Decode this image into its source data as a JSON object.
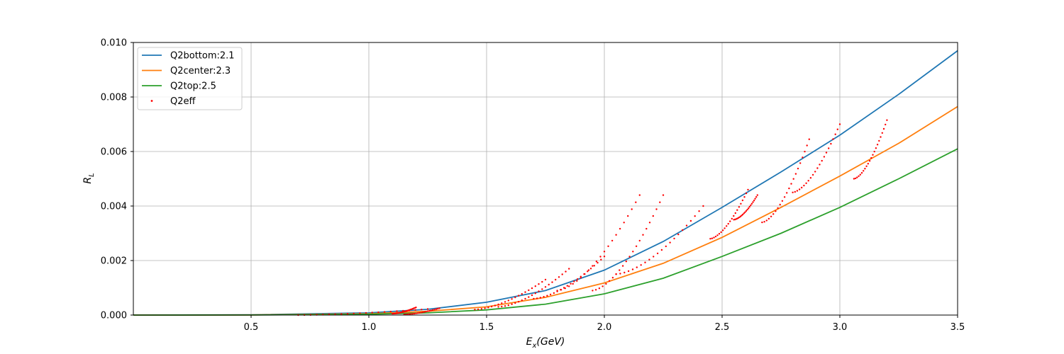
{
  "chart_data": {
    "type": "line",
    "title": "",
    "xlabel": "E_x(GeV)",
    "ylabel": "R_L",
    "xlim": [
      0.0,
      3.5
    ],
    "ylim": [
      0.0,
      0.01
    ],
    "x_ticks": [
      "0.5",
      "1.0",
      "1.5",
      "2.0",
      "2.5",
      "3.0",
      "3.5"
    ],
    "y_ticks": [
      "0.000",
      "0.002",
      "0.004",
      "0.006",
      "0.008",
      "0.010"
    ],
    "grid": true,
    "legend_position": "upper-left",
    "series": [
      {
        "name": "Q2bottom:2.1",
        "kind": "line",
        "color": "#1f77b4",
        "x": [
          0.0,
          0.5,
          1.0,
          1.25,
          1.5,
          1.75,
          2.0,
          2.25,
          2.5,
          2.75,
          3.0,
          3.25,
          3.5
        ],
        "y": [
          0.0,
          1e-05,
          8e-05,
          0.00021,
          0.00047,
          0.0009,
          0.00165,
          0.0027,
          0.00395,
          0.00525,
          0.0066,
          0.0081,
          0.0097
        ]
      },
      {
        "name": "Q2center:2.3",
        "kind": "line",
        "color": "#ff7f0e",
        "x": [
          0.0,
          0.5,
          1.0,
          1.25,
          1.5,
          1.75,
          2.0,
          2.25,
          2.5,
          2.75,
          3.0,
          3.25,
          3.5
        ],
        "y": [
          0.0,
          5e-06,
          5e-05,
          0.00014,
          0.0003,
          0.00065,
          0.00118,
          0.0019,
          0.00285,
          0.00395,
          0.0051,
          0.0063,
          0.00765
        ]
      },
      {
        "name": "Q2top:2.5",
        "kind": "line",
        "color": "#2ca02c",
        "x": [
          0.0,
          0.5,
          1.0,
          1.25,
          1.5,
          1.75,
          2.0,
          2.25,
          2.5,
          2.75,
          3.0,
          3.25,
          3.5
        ],
        "y": [
          0.0,
          3e-06,
          3e-05,
          8e-05,
          0.00019,
          0.0004,
          0.00078,
          0.00135,
          0.00215,
          0.003,
          0.00395,
          0.005,
          0.0061
        ]
      },
      {
        "name": "Q2eff",
        "kind": "scatter",
        "color": "#ff0000",
        "segments": [
          {
            "x": [
              0.7,
              1.25
            ],
            "y": [
              0.0,
              0.00022
            ]
          },
          {
            "x": [
              1.1,
              1.2
            ],
            "y": [
              5e-05,
              0.00028
            ]
          },
          {
            "x": [
              1.15,
              1.3
            ],
            "y": [
              2e-05,
              0.00025
            ]
          },
          {
            "x": [
              1.45,
              1.75
            ],
            "y": [
              0.0002,
              0.0013
            ]
          },
          {
            "x": [
              1.55,
              1.85
            ],
            "y": [
              0.0003,
              0.0017
            ]
          },
          {
            "x": [
              1.7,
              2.0
            ],
            "y": [
              0.0006,
              0.00215
            ]
          },
          {
            "x": [
              1.8,
              2.15
            ],
            "y": [
              0.0009,
              0.0044
            ]
          },
          {
            "x": [
              1.95,
              2.25
            ],
            "y": [
              0.0009,
              0.0044
            ]
          },
          {
            "x": [
              2.05,
              2.42
            ],
            "y": [
              0.0015,
              0.004
            ]
          },
          {
            "x": [
              2.45,
              2.61
            ],
            "y": [
              0.0028,
              0.0046
            ]
          },
          {
            "x": [
              2.55,
              2.65
            ],
            "y": [
              0.0035,
              0.0044
            ]
          },
          {
            "x": [
              2.67,
              2.87
            ],
            "y": [
              0.0034,
              0.00645
            ]
          },
          {
            "x": [
              2.8,
              3.0
            ],
            "y": [
              0.0045,
              0.007
            ]
          },
          {
            "x": [
              3.06,
              3.2
            ],
            "y": [
              0.005,
              0.00715
            ]
          }
        ]
      }
    ]
  }
}
